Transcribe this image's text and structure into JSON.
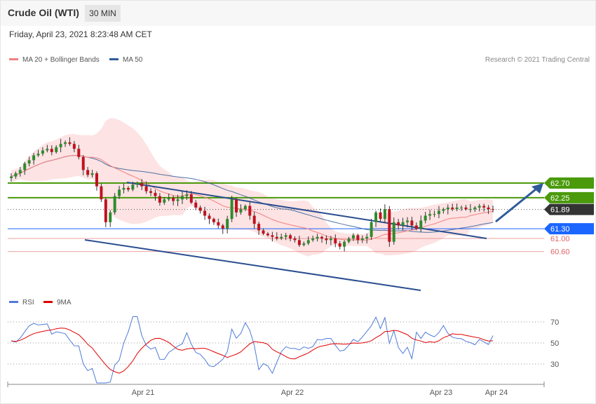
{
  "header": {
    "title": "Crude Oil (WTI)",
    "interval": "30 MIN"
  },
  "timestamp": "Friday, April 23, 2021 8:23:48 AM CET",
  "legend": {
    "ma20": {
      "label": "MA 20 + Bollinger Bands",
      "color": "#f08080"
    },
    "ma50": {
      "label": "MA 50",
      "color": "#2e5c9a"
    }
  },
  "copyright": "Research © 2021 Trading Central",
  "rsi_legend": {
    "rsi": {
      "label": "RSI",
      "color": "#4f7bd9"
    },
    "ma9": {
      "label": "9MA",
      "color": "#e00000"
    }
  },
  "chart_data": {
    "type": "candlestick",
    "instrument": "Crude Oil (WTI)",
    "timeframe": "30 MIN",
    "x_labels": [
      "Apr 21",
      "Apr 22",
      "Apr 23",
      "Apr 24"
    ],
    "price_levels": [
      {
        "label": "62.70",
        "value": 62.7,
        "kind": "resistance",
        "color": "#4a9a0c"
      },
      {
        "label": "62.25",
        "value": 62.25,
        "kind": "resistance",
        "color": "#4a9a0c"
      },
      {
        "label": "61.89",
        "value": 61.89,
        "kind": "last price",
        "color": "#333333"
      },
      {
        "label": "61.30",
        "value": 61.3,
        "kind": "pivot",
        "color": "#1a66ff"
      },
      {
        "label": "61.00",
        "value": 61.0,
        "kind": "support",
        "color": "#e06666"
      },
      {
        "label": "60.60",
        "value": 60.6,
        "kind": "support",
        "color": "#e06666"
      }
    ],
    "series_close": [
      62.9,
      63.0,
      63.1,
      63.3,
      63.4,
      63.55,
      63.6,
      63.7,
      63.75,
      63.65,
      63.8,
      63.9,
      63.95,
      63.9,
      63.75,
      63.5,
      63.1,
      62.95,
      63.0,
      62.6,
      62.2,
      61.5,
      61.8,
      62.3,
      62.5,
      62.55,
      62.5,
      62.65,
      62.7,
      62.6,
      62.45,
      62.4,
      62.3,
      62.1,
      62.2,
      62.25,
      62.15,
      62.2,
      62.3,
      62.35,
      62.1,
      61.95,
      61.85,
      61.7,
      61.6,
      61.5,
      61.4,
      61.3,
      61.6,
      62.2,
      61.8,
      61.9,
      62.0,
      61.7,
      61.45,
      61.25,
      61.15,
      61.1,
      61.05,
      61.0,
      61.05,
      61.1,
      61.0,
      60.95,
      60.8,
      60.85,
      60.95,
      61.0,
      61.05,
      61.0,
      60.95,
      61.0,
      60.85,
      60.75,
      60.9,
      61.0,
      61.1,
      60.95,
      61.0,
      61.05,
      61.5,
      61.8,
      61.6,
      61.9,
      60.9,
      61.5,
      61.4,
      61.5,
      61.55,
      61.4,
      61.3,
      61.55,
      61.7,
      61.75,
      61.75,
      61.85,
      61.9,
      61.95,
      61.9,
      61.95,
      61.95,
      61.9,
      61.9,
      61.95,
      62.0,
      61.95,
      61.9,
      61.89
    ],
    "rsi": {
      "ticks": [
        70,
        50,
        30
      ],
      "last_value": 57
    }
  }
}
